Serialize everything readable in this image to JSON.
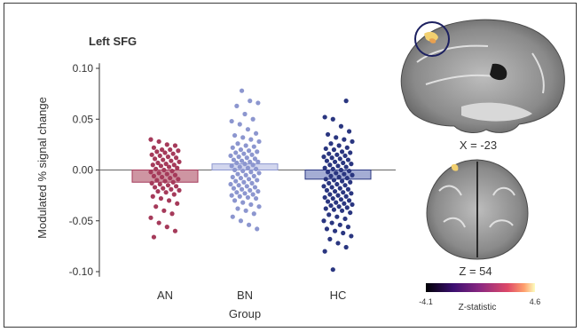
{
  "chart_data": {
    "type": "bar",
    "title": "Left SFG",
    "xlabel": "Group",
    "ylabel": "Modulated % signal change",
    "categories": [
      "AN",
      "BN",
      "HC"
    ],
    "values": [
      -0.012,
      0.006,
      -0.009
    ],
    "ylim": [
      -0.105,
      0.105
    ],
    "yticks": [
      0.1,
      0.05,
      0.0,
      -0.05,
      -0.1
    ],
    "ytick_labels": [
      "0.10",
      "0.05",
      "0.00",
      "-0.05",
      "-0.10"
    ],
    "grid": false,
    "zero_line": true,
    "points": [
      [
        0.03,
        0.028,
        0.025,
        0.024,
        0.022,
        0.02,
        0.02,
        0.019,
        0.018,
        0.017,
        0.016,
        0.015,
        0.014,
        0.013,
        0.012,
        0.011,
        0.01,
        0.009,
        0.008,
        0.007,
        0.006,
        0.005,
        0.005,
        0.004,
        0.003,
        0.002,
        0.001,
        0.0,
        -0.001,
        -0.002,
        -0.003,
        -0.004,
        -0.005,
        -0.006,
        -0.007,
        -0.008,
        -0.009,
        -0.01,
        -0.011,
        -0.012,
        -0.013,
        -0.014,
        -0.015,
        -0.016,
        -0.017,
        -0.018,
        -0.019,
        -0.02,
        -0.021,
        -0.022,
        -0.024,
        -0.026,
        -0.028,
        -0.03,
        -0.033,
        -0.036,
        -0.04,
        -0.043,
        -0.047,
        -0.052,
        -0.056,
        -0.06,
        -0.066
      ],
      [
        0.078,
        0.068,
        0.066,
        0.063,
        0.055,
        0.05,
        0.048,
        0.045,
        0.04,
        0.036,
        0.034,
        0.032,
        0.03,
        0.028,
        0.026,
        0.024,
        0.023,
        0.022,
        0.02,
        0.019,
        0.018,
        0.017,
        0.016,
        0.015,
        0.014,
        0.013,
        0.012,
        0.011,
        0.01,
        0.009,
        0.008,
        0.008,
        0.007,
        0.006,
        0.005,
        0.004,
        0.003,
        0.002,
        0.001,
        0.0,
        -0.001,
        -0.002,
        -0.003,
        -0.004,
        -0.005,
        -0.006,
        -0.007,
        -0.008,
        -0.009,
        -0.01,
        -0.011,
        -0.012,
        -0.013,
        -0.014,
        -0.015,
        -0.016,
        -0.017,
        -0.018,
        -0.019,
        -0.02,
        -0.021,
        -0.022,
        -0.023,
        -0.024,
        -0.025,
        -0.026,
        -0.027,
        -0.028,
        -0.03,
        -0.032,
        -0.034,
        -0.036,
        -0.038,
        -0.04,
        -0.043,
        -0.046,
        -0.05,
        -0.054,
        -0.058
      ],
      [
        0.068,
        0.052,
        0.05,
        0.043,
        0.038,
        0.035,
        0.032,
        0.03,
        0.028,
        0.026,
        0.024,
        0.022,
        0.021,
        0.02,
        0.018,
        0.017,
        0.016,
        0.015,
        0.014,
        0.013,
        0.012,
        0.011,
        0.01,
        0.009,
        0.008,
        0.007,
        0.006,
        0.005,
        0.004,
        0.003,
        0.002,
        0.001,
        0.0,
        -0.001,
        -0.002,
        -0.003,
        -0.004,
        -0.005,
        -0.006,
        -0.007,
        -0.008,
        -0.009,
        -0.01,
        -0.011,
        -0.012,
        -0.013,
        -0.014,
        -0.015,
        -0.016,
        -0.017,
        -0.018,
        -0.019,
        -0.02,
        -0.021,
        -0.022,
        -0.023,
        -0.024,
        -0.025,
        -0.026,
        -0.027,
        -0.028,
        -0.029,
        -0.03,
        -0.031,
        -0.032,
        -0.033,
        -0.034,
        -0.035,
        -0.036,
        -0.037,
        -0.038,
        -0.039,
        -0.04,
        -0.042,
        -0.044,
        -0.046,
        -0.048,
        -0.05,
        -0.052,
        -0.054,
        -0.056,
        -0.058,
        -0.06,
        -0.062,
        -0.065,
        -0.068,
        -0.072,
        -0.076,
        -0.08,
        -0.098
      ]
    ],
    "colors": {
      "AN": "#a53a5a",
      "BN": "#8c96cf",
      "HC": "#2a3680",
      "AN_bar": "#c98a98",
      "BN_bar": "#cdd2ec",
      "HC_bar": "#9aa4cf"
    }
  },
  "brain": {
    "sagittal_label": "X = -23",
    "axial_label": "Z = 54",
    "colorbar_min": "-4.1",
    "colorbar_max": "4.6",
    "colorbar_title": "Z-statistic",
    "highlight_color": "#1c2060"
  }
}
